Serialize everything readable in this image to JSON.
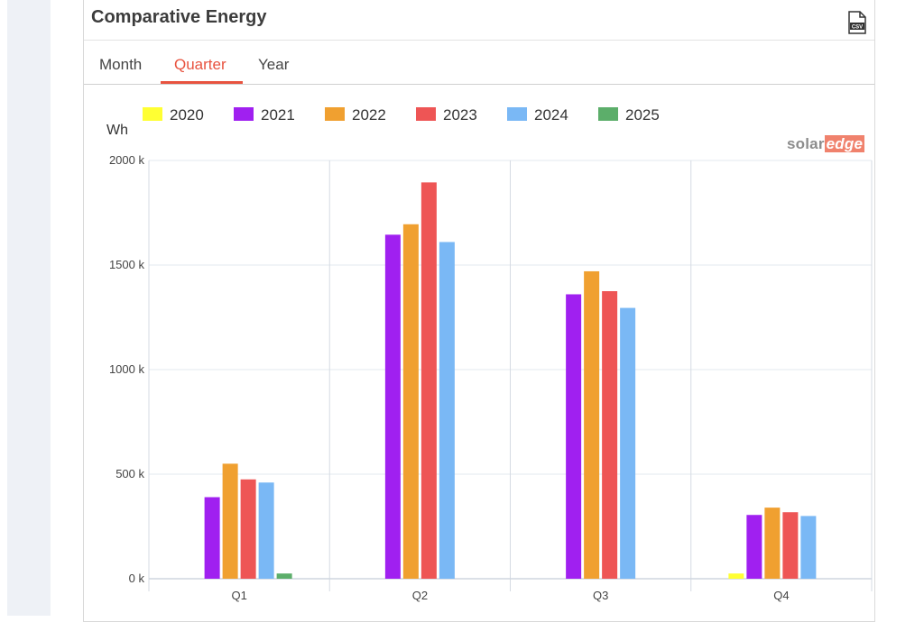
{
  "card": {
    "title": "Comparative Energy",
    "export_icon": "csv-file-icon",
    "export_label": "CSV"
  },
  "tabs": [
    {
      "label": "Month",
      "active": false
    },
    {
      "label": "Quarter",
      "active": true
    },
    {
      "label": "Year",
      "active": false
    }
  ],
  "brand": {
    "part1": "solar",
    "part2": "edge"
  },
  "chart_data": {
    "type": "bar",
    "ylabel": "Wh",
    "ylim": [
      0,
      2000
    ],
    "y_ticks": [
      0,
      500,
      1000,
      1500,
      2000
    ],
    "y_tick_labels": [
      "0 k",
      "500 k",
      "1000 k",
      "1500 k",
      "2000 k"
    ],
    "categories": [
      "Q1",
      "Q2",
      "Q3",
      "Q4"
    ],
    "legend_position": "top",
    "grid": true,
    "series": [
      {
        "name": "2020",
        "color": "#ffff33",
        "values": [
          0,
          0,
          0,
          25
        ]
      },
      {
        "name": "2021",
        "color": "#a020f0",
        "values": [
          390,
          1645,
          1360,
          305
        ]
      },
      {
        "name": "2022",
        "color": "#f0a030",
        "values": [
          550,
          1695,
          1470,
          340
        ]
      },
      {
        "name": "2023",
        "color": "#ee5555",
        "values": [
          475,
          1895,
          1375,
          318
        ]
      },
      {
        "name": "2024",
        "color": "#7ab8f5",
        "values": [
          460,
          1610,
          1295,
          300
        ]
      },
      {
        "name": "2025",
        "color": "#5cae6a",
        "values": [
          25,
          0,
          0,
          0
        ]
      }
    ]
  }
}
